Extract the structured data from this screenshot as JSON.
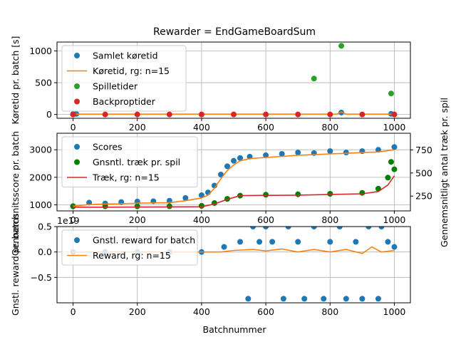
{
  "chart_data": {
    "type": "line",
    "title": "Rewarder = EndGameBoardSum",
    "xlabel": "Batchnummer",
    "xticks": [
      0,
      200,
      400,
      600,
      800,
      1000
    ],
    "xlim": [
      -50,
      1050
    ],
    "grid": true,
    "panels": [
      {
        "ylabel": "Køretid pr. batch [s]",
        "ylim": [
          -60,
          1140
        ],
        "yticks": [
          0,
          500,
          1000
        ],
        "legend_position": "top-left",
        "series": [
          {
            "name": "Samlet køretid",
            "kind": "scatter",
            "color": "#1f77b4",
            "points": [
              [
                0,
                5
              ],
              [
                10,
                8
              ],
              [
                835,
                30
              ],
              [
                990,
                10
              ]
            ]
          },
          {
            "name": "Køretid, rg: n=15",
            "kind": "line",
            "color": "#ff7f0e",
            "points": [
              [
                0,
                5
              ],
              [
                400,
                5
              ],
              [
                820,
                5
              ],
              [
                835,
                40
              ],
              [
                850,
                5
              ],
              [
                1000,
                5
              ]
            ]
          },
          {
            "name": "Spilletider",
            "kind": "scatter",
            "color": "#2ca02c",
            "points": [
              [
                750,
                565
              ],
              [
                835,
                1080
              ],
              [
                990,
                330
              ]
            ]
          },
          {
            "name": "Backproptider",
            "kind": "scatter",
            "color": "#d62728",
            "points": [
              [
                0,
                0
              ],
              [
                100,
                0
              ],
              [
                200,
                0
              ],
              [
                300,
                0
              ],
              [
                400,
                0
              ],
              [
                500,
                0
              ],
              [
                600,
                0
              ],
              [
                700,
                0
              ],
              [
                800,
                0
              ],
              [
                900,
                0
              ],
              [
                1000,
                0
              ]
            ]
          }
        ]
      },
      {
        "ylabel": "Gennemsnitsscore pr. batch",
        "ylim": [
          780,
          3600
        ],
        "yticks": [
          1000,
          2000,
          3000
        ],
        "ylabel_right": "Gennemsnitligt antal træk pr. spil",
        "ylim_right": [
          90,
          930
        ],
        "yticks_right": [
          250,
          500,
          750
        ],
        "legend_position": "top-left",
        "series": [
          {
            "name": "Scores",
            "kind": "scatter",
            "color": "#1f77b4",
            "axis": "left",
            "points": [
              [
                0,
                950
              ],
              [
                50,
                1080
              ],
              [
                100,
                1050
              ],
              [
                150,
                1100
              ],
              [
                200,
                1120
              ],
              [
                250,
                1130
              ],
              [
                300,
                1150
              ],
              [
                350,
                1250
              ],
              [
                400,
                1350
              ],
              [
                420,
                1450
              ],
              [
                440,
                1700
              ],
              [
                460,
                2100
              ],
              [
                480,
                2400
              ],
              [
                500,
                2600
              ],
              [
                520,
                2700
              ],
              [
                550,
                2750
              ],
              [
                600,
                2800
              ],
              [
                650,
                2850
              ],
              [
                700,
                2900
              ],
              [
                750,
                2880
              ],
              [
                800,
                2950
              ],
              [
                850,
                2900
              ],
              [
                900,
                2950
              ],
              [
                950,
                3000
              ],
              [
                1000,
                3100
              ]
            ]
          },
          {
            "name": "Gnsntl. træk pr. spil",
            "kind": "scatter",
            "color": "#008000",
            "axis": "right",
            "points": [
              [
                0,
                140
              ],
              [
                100,
                140
              ],
              [
                200,
                140
              ],
              [
                300,
                140
              ],
              [
                400,
                145
              ],
              [
                440,
                175
              ],
              [
                480,
                220
              ],
              [
                520,
                255
              ],
              [
                600,
                265
              ],
              [
                700,
                270
              ],
              [
                800,
                275
              ],
              [
                900,
                285
              ],
              [
                950,
                330
              ],
              [
                980,
                450
              ],
              [
                990,
                620
              ],
              [
                1000,
                540
              ]
            ]
          },
          {
            "name": "Træk, rg: n=15",
            "kind": "line",
            "color": "#d62728",
            "axis": "right",
            "points": [
              [
                0,
                130
              ],
              [
                100,
                130
              ],
              [
                200,
                132
              ],
              [
                300,
                133
              ],
              [
                400,
                135
              ],
              [
                440,
                165
              ],
              [
                480,
                215
              ],
              [
                520,
                255
              ],
              [
                600,
                258
              ],
              [
                700,
                260
              ],
              [
                800,
                268
              ],
              [
                900,
                275
              ],
              [
                950,
                300
              ],
              [
                980,
                370
              ],
              [
                1000,
                470
              ]
            ]
          },
          {
            "name": "",
            "kind": "line",
            "color": "#ff7f0e",
            "axis": "left",
            "points": [
              [
                0,
                950
              ],
              [
                50,
                1010
              ],
              [
                100,
                1030
              ],
              [
                150,
                1040
              ],
              [
                200,
                1060
              ],
              [
                250,
                1070
              ],
              [
                300,
                1080
              ],
              [
                350,
                1150
              ],
              [
                400,
                1250
              ],
              [
                420,
                1350
              ],
              [
                440,
                1600
              ],
              [
                460,
                1950
              ],
              [
                480,
                2250
              ],
              [
                500,
                2450
              ],
              [
                520,
                2600
              ],
              [
                550,
                2680
              ],
              [
                600,
                2720
              ],
              [
                650,
                2760
              ],
              [
                700,
                2800
              ],
              [
                750,
                2820
              ],
              [
                800,
                2850
              ],
              [
                850,
                2870
              ],
              [
                900,
                2900
              ],
              [
                950,
                2920
              ],
              [
                1000,
                3000
              ]
            ]
          }
        ]
      },
      {
        "ylabel": "Gnstl. reward pr. batch",
        "ylim": [
          -1.0,
          0.5
        ],
        "yticks": [
          -0.5,
          0.0,
          0.5
        ],
        "ytick_labels": [
          "−0.5",
          "0.0",
          "0.5"
        ],
        "offset_text": "1e19",
        "legend_position": "top-left",
        "series": [
          {
            "name": "Gnstl. reward for batch",
            "kind": "scatter",
            "color": "#1f77b4",
            "points": [
              [
                0,
                0
              ],
              [
                100,
                0
              ],
              [
                200,
                0
              ],
              [
                300,
                0
              ],
              [
                400,
                0
              ],
              [
                470,
                0.1
              ],
              [
                520,
                0.2
              ],
              [
                545,
                -0.92
              ],
              [
                560,
                0.5
              ],
              [
                580,
                0.2
              ],
              [
                600,
                0.5
              ],
              [
                620,
                0.2
              ],
              [
                655,
                -0.92
              ],
              [
                670,
                0.5
              ],
              [
                700,
                0.2
              ],
              [
                720,
                -0.92
              ],
              [
                750,
                0.5
              ],
              [
                780,
                -0.92
              ],
              [
                800,
                0.2
              ],
              [
                830,
                0.5
              ],
              [
                850,
                -0.92
              ],
              [
                880,
                0.2
              ],
              [
                900,
                -0.92
              ],
              [
                920,
                0.5
              ],
              [
                950,
                -0.92
              ],
              [
                960,
                0.5
              ],
              [
                980,
                0.2
              ],
              [
                1000,
                0.1
              ]
            ]
          },
          {
            "name": "Reward, rg: n=15",
            "kind": "line",
            "color": "#ff7f0e",
            "points": [
              [
                0,
                0
              ],
              [
                400,
                0
              ],
              [
                460,
                0
              ],
              [
                500,
                0.03
              ],
              [
                560,
                0.05
              ],
              [
                600,
                0.02
              ],
              [
                650,
                0.06
              ],
              [
                700,
                0.0
              ],
              [
                750,
                0.05
              ],
              [
                800,
                0.0
              ],
              [
                850,
                0.05
              ],
              [
                900,
                -0.03
              ],
              [
                930,
                0.1
              ],
              [
                960,
                0.0
              ],
              [
                1000,
                0.03
              ]
            ]
          }
        ]
      }
    ]
  }
}
